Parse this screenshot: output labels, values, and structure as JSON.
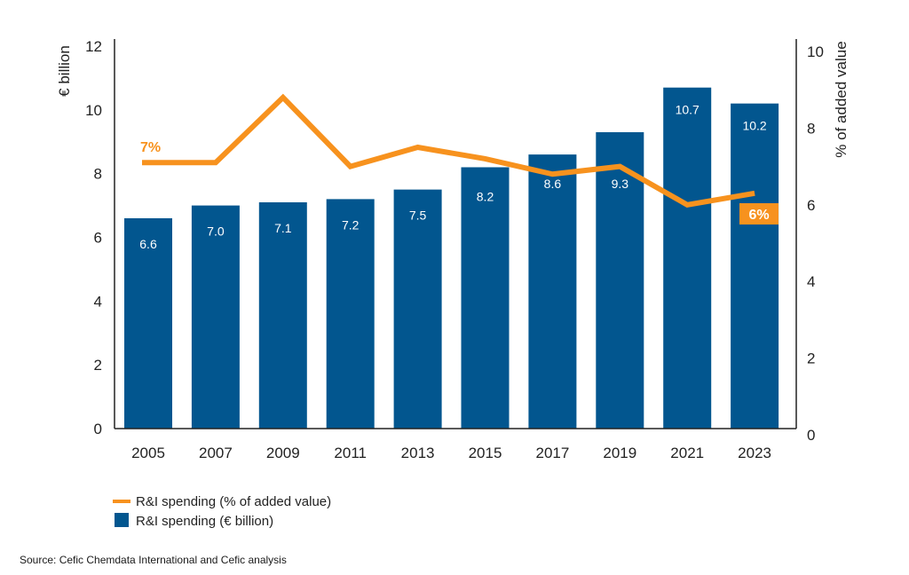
{
  "chart_data": {
    "type": "bar",
    "categories": [
      "2005",
      "2007",
      "2009",
      "2011",
      "2013",
      "2015",
      "2017",
      "2019",
      "2021",
      "2023"
    ],
    "series": [
      {
        "name": "R&I spending (€ billion)",
        "type": "bar",
        "axis": "left",
        "color": "#02568f",
        "values": [
          6.6,
          7.0,
          7.1,
          7.2,
          7.5,
          8.2,
          8.6,
          9.3,
          10.7,
          10.2
        ],
        "labels": [
          "6.6",
          "7.0",
          "7.1",
          "7.2",
          "7.5",
          "8.2",
          "8.6",
          "9.3",
          "10.7",
          "10.2"
        ]
      },
      {
        "name": "R&I spending (% of added value)",
        "type": "line",
        "axis": "right",
        "color": "#f7921e",
        "values": [
          7.1,
          7.1,
          8.8,
          7.0,
          7.5,
          7.2,
          6.8,
          7.0,
          6.0,
          6.3
        ],
        "first_label": "7%",
        "last_label": "6%"
      }
    ],
    "ylabel": "€ billion",
    "ylim": [
      0,
      12
    ],
    "yticks": [
      "0",
      "2",
      "4",
      "6",
      "8",
      "10",
      "12"
    ],
    "y2label": "% of added value",
    "y2lim": [
      0,
      10
    ],
    "y2ticks": [
      "0",
      "2",
      "4",
      "6",
      "8",
      "10"
    ],
    "grid": false,
    "legend_placement": "bottom-left"
  },
  "source": "Source: Cefic Chemdata International and Cefic analysis"
}
